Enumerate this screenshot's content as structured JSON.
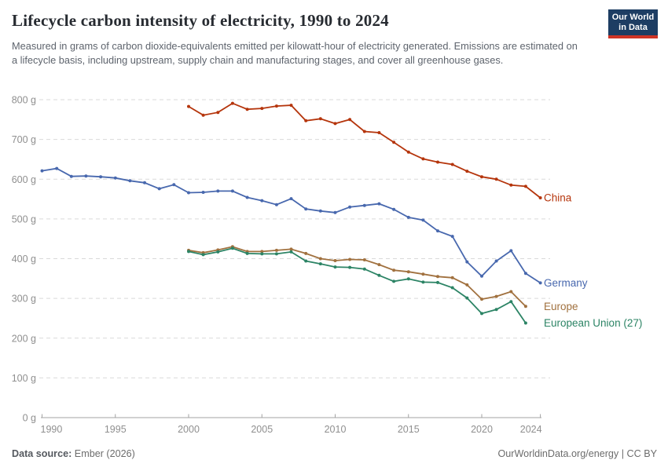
{
  "header": {
    "title": "Lifecycle carbon intensity of electricity, 1990 to 2024",
    "subtitle": "Measured in grams of carbon dioxide-equivalents emitted per kilowatt-hour of electricity generated. Emissions are estimated on a lifecycle basis, including upstream, supply chain and manufacturing stages, and cover all greenhouse gases.",
    "logo": {
      "line1": "Our World",
      "line2": "in Data",
      "bg": "#1d3d63",
      "stripe": "#cf3426"
    }
  },
  "chart_data": {
    "type": "line",
    "title": "Lifecycle carbon intensity of electricity, 1990 to 2024",
    "ylabel": "grams of CO2-equivalents per kilowatt-hour",
    "ylim": [
      0,
      800
    ],
    "ytick_values": [
      0,
      100,
      200,
      300,
      400,
      500,
      600,
      700,
      800
    ],
    "ytick_labels": [
      "0 g",
      "100 g",
      "200 g",
      "300 g",
      "400 g",
      "500 g",
      "600 g",
      "700 g",
      "800 g"
    ],
    "xlim": [
      1990,
      2024
    ],
    "xtick_values": [
      1990,
      1995,
      2000,
      2005,
      2010,
      2015,
      2020,
      2024
    ],
    "xtick_labels": [
      "1990",
      "1995",
      "2000",
      "2005",
      "2010",
      "2015",
      "2020",
      "2024"
    ],
    "grid": true,
    "legend_position": "right-of-line-ends",
    "colors": {
      "grid": "#d9d9d9",
      "axis": "#a3a3a3",
      "tick_text": "#8f8f8f"
    },
    "series": [
      {
        "name": "Germany",
        "color": "#4868AE",
        "start_year": 1990,
        "values": [
          621,
          627,
          607,
          608,
          606,
          603,
          596,
          591,
          576,
          586,
          566,
          567,
          570,
          570,
          554,
          546,
          536,
          551,
          525,
          520,
          516,
          530,
          534,
          538,
          524,
          504,
          497,
          470,
          456,
          392,
          356,
          394,
          420,
          363,
          339
        ]
      },
      {
        "name": "China",
        "color": "#B5350C",
        "start_year": 2000,
        "values": [
          783,
          761,
          768,
          791,
          776,
          778,
          784,
          786,
          747,
          752,
          740,
          750,
          720,
          717,
          693,
          668,
          651,
          643,
          637,
          620,
          606,
          600,
          585,
          582,
          553
        ]
      },
      {
        "name": "Europe",
        "color": "#A1713F",
        "start_year": 2000,
        "values": [
          421,
          415,
          422,
          430,
          418,
          418,
          421,
          424,
          413,
          400,
          395,
          398,
          397,
          385,
          371,
          367,
          361,
          355,
          352,
          334,
          298,
          305,
          317,
          280
        ]
      },
      {
        "name": "European Union (27)",
        "color": "#2C8465",
        "start_year": 2000,
        "values": [
          418,
          410,
          417,
          426,
          413,
          412,
          412,
          417,
          394,
          387,
          379,
          378,
          374,
          358,
          343,
          349,
          341,
          340,
          327,
          301,
          262,
          272,
          292,
          238
        ]
      }
    ]
  },
  "footer": {
    "source_label": "Data source:",
    "source_value": "Ember (2026)",
    "credit": "OurWorldinData.org/energy | CC BY"
  }
}
